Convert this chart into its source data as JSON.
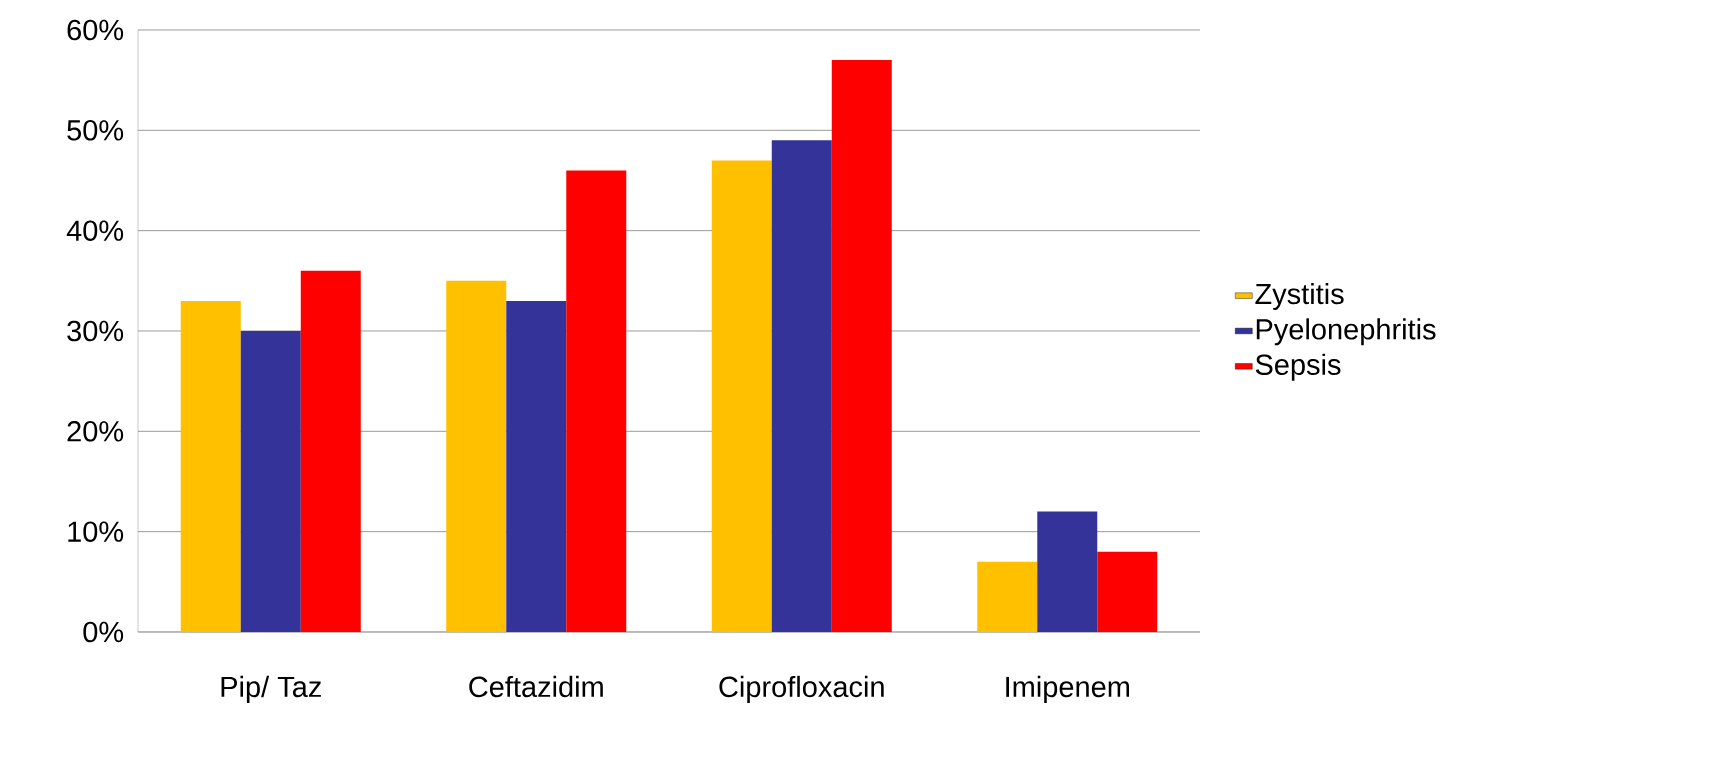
{
  "chart_data": {
    "type": "bar",
    "categories": [
      "Pip/ Taz",
      "Ceftazidim",
      "Ciprofloxacin",
      "Imipenem"
    ],
    "series": [
      {
        "name": "Zystitis",
        "color": "#ffc000",
        "values": [
          33,
          35,
          47,
          7
        ]
      },
      {
        "name": "Pyelonephritis",
        "color": "#333399",
        "values": [
          30,
          33,
          49,
          12
        ]
      },
      {
        "name": "Sepsis",
        "color": "#ff0000",
        "values": [
          36,
          46,
          57,
          8
        ]
      }
    ],
    "ylim": [
      0,
      60
    ],
    "yticks": [
      {
        "value": 0,
        "label": "0%"
      },
      {
        "value": 10,
        "label": "10%"
      },
      {
        "value": 20,
        "label": "20%"
      },
      {
        "value": 30,
        "label": "30%"
      },
      {
        "value": 40,
        "label": "40%"
      },
      {
        "value": 50,
        "label": "50%"
      },
      {
        "value": 60,
        "label": "60%"
      }
    ],
    "grid": "y",
    "legend": "right"
  }
}
